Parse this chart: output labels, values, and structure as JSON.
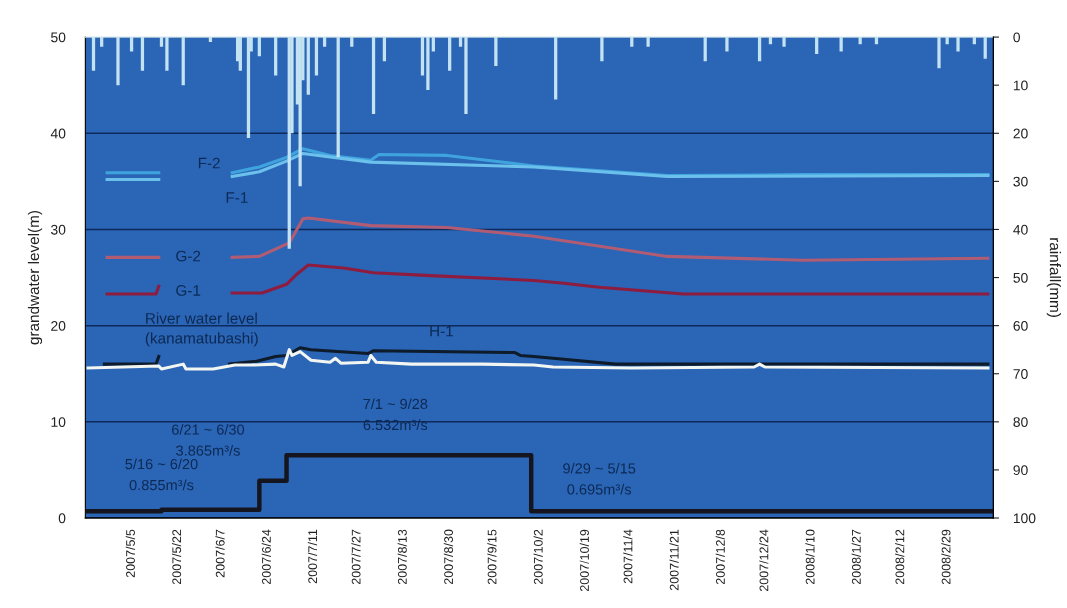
{
  "chart_data": {
    "type": "line",
    "ylabel": "grandwater level(m)",
    "y2label": "rainfall(mm)",
    "xlim": [
      "2007-04-18",
      "2008-03-17"
    ],
    "xticks": [
      {
        "value": "2007-05-05",
        "label": "2007/5/5"
      },
      {
        "value": "2007-05-22",
        "label": "2007/5/22"
      },
      {
        "value": "2007-06-07",
        "label": "2007/6/7"
      },
      {
        "value": "2007-06-24",
        "label": "2007/6/24"
      },
      {
        "value": "2007-07-11",
        "label": "2007/7/11"
      },
      {
        "value": "2007-07-27",
        "label": "2007/7/27"
      },
      {
        "value": "2007-08-13",
        "label": "2007/8/13"
      },
      {
        "value": "2007-08-30",
        "label": "2007/8/30"
      },
      {
        "value": "2007-09-15",
        "label": "2007/9/15"
      },
      {
        "value": "2007-10-02",
        "label": "2007/10/2"
      },
      {
        "value": "2007-10-19",
        "label": "2007/10/19"
      },
      {
        "value": "2007-11-04",
        "label": "2007/11/4"
      },
      {
        "value": "2007-11-21",
        "label": "2007/11/21"
      },
      {
        "value": "2007-12-08",
        "label": "2007/12/8"
      },
      {
        "value": "2007-12-24",
        "label": "2007/12/24"
      },
      {
        "value": "2008-01-10",
        "label": "2008/1/10"
      },
      {
        "value": "2008-01-27",
        "label": "2008/1/27"
      },
      {
        "value": "2008-02-12",
        "label": "2008/2/12"
      },
      {
        "value": "2008-02-29",
        "label": "2008/2/29"
      }
    ],
    "ylim": [
      0,
      50
    ],
    "yticks": [
      0,
      10,
      20,
      30,
      40,
      50
    ],
    "y2lim": [
      100,
      0
    ],
    "y2ticks": [
      0,
      10,
      20,
      30,
      40,
      50,
      60,
      70,
      80,
      90,
      100
    ],
    "grid": "y",
    "series": [
      {
        "type": "bar",
        "axis": "y2",
        "color": "#c3e2f2",
        "x": [
          "2007-04-21",
          "2007-04-24",
          "2007-04-30",
          "2007-05-05",
          "2007-05-09",
          "2007-05-16",
          "2007-05-18",
          "2007-05-24",
          "2007-06-03",
          "2007-06-13",
          "2007-06-14",
          "2007-06-17",
          "2007-06-18",
          "2007-06-21",
          "2007-06-27",
          "2007-07-02",
          "2007-07-03",
          "2007-07-05",
          "2007-07-06",
          "2007-07-07",
          "2007-07-09",
          "2007-07-12",
          "2007-07-15",
          "2007-07-20",
          "2007-07-25",
          "2007-08-02",
          "2007-08-06",
          "2007-08-20",
          "2007-08-22",
          "2007-08-24",
          "2007-08-30",
          "2007-09-03",
          "2007-09-05",
          "2007-09-16",
          "2007-10-08",
          "2007-10-25",
          "2007-11-05",
          "2007-11-11",
          "2007-12-02",
          "2007-12-10",
          "2007-12-22",
          "2007-12-26",
          "2007-12-31",
          "2008-01-12",
          "2008-01-21",
          "2008-01-28",
          "2008-02-03",
          "2008-02-26",
          "2008-02-29",
          "2008-03-04",
          "2008-03-10",
          "2008-03-14"
        ],
        "values": [
          7,
          2,
          10,
          3,
          7,
          2,
          7,
          10,
          1,
          5,
          7,
          21,
          3,
          4,
          8,
          44,
          20,
          14,
          31,
          9,
          12,
          8,
          2,
          25,
          2,
          16,
          5,
          8,
          11,
          3,
          7,
          2,
          16,
          6,
          13,
          5,
          2,
          2,
          5,
          3,
          5,
          1.5,
          2,
          3.5,
          3,
          1.5,
          1.5,
          6.5,
          1.5,
          3,
          1.5,
          4.5
        ]
      },
      {
        "name": "F-2",
        "color": "#3fa4de",
        "x": [
          "2007-04-26",
          "2007-05-15",
          "2007-05-31",
          "2007-06-11",
          "2007-06-21",
          "2007-07-01",
          "2007-07-07",
          "2007-07-17",
          "2007-08-01",
          "2007-08-04",
          "2007-08-29",
          "2007-09-30",
          "2007-11-18",
          "2008-01-07",
          "2008-03-15"
        ],
        "values": [
          35.9,
          35.9,
          null,
          35.9,
          36.5,
          37.5,
          38.4,
          37.7,
          37.2,
          37.8,
          37.7,
          36.6,
          35.6,
          35.7,
          35.7
        ]
      },
      {
        "name": "F-1",
        "color": "#6cc0ec",
        "x": [
          "2007-04-26",
          "2007-05-15",
          "2007-05-31",
          "2007-06-11",
          "2007-06-21",
          "2007-07-01",
          "2007-07-07",
          "2007-08-01",
          "2007-09-30",
          "2007-11-18",
          "2008-03-15"
        ],
        "values": [
          35.2,
          35.2,
          null,
          35.5,
          36.0,
          37.1,
          37.9,
          37.0,
          36.5,
          35.5,
          35.6
        ]
      },
      {
        "name": "G-2",
        "color": "#b25c74",
        "x": [
          "2007-04-26",
          "2007-05-15",
          "2007-05-31",
          "2007-06-11",
          "2007-06-21",
          "2007-07-02",
          "2007-07-07",
          "2007-07-09",
          "2007-08-01",
          "2007-08-29",
          "2007-09-30",
          "2007-11-18",
          "2008-01-07",
          "2008-03-15"
        ],
        "values": [
          27.1,
          27.1,
          null,
          27.1,
          27.2,
          28.6,
          31.1,
          31.2,
          30.4,
          30.2,
          29.3,
          27.2,
          26.8,
          27.0
        ]
      },
      {
        "name": "G-1",
        "color": "#8e1c3e",
        "x": [
          "2007-04-26",
          "2007-05-14",
          "2007-05-15",
          "2007-05-31",
          "2007-06-11",
          "2007-06-22",
          "2007-07-01",
          "2007-07-05",
          "2007-07-09",
          "2007-07-22",
          "2007-08-02",
          "2007-08-23",
          "2007-09-30",
          "2007-10-11",
          "2007-10-24",
          "2007-11-24",
          "2008-03-15"
        ],
        "values": [
          23.3,
          23.3,
          24.1,
          null,
          23.4,
          23.4,
          24.3,
          25.4,
          26.3,
          26.0,
          25.5,
          25.2,
          24.7,
          24.4,
          24.0,
          23.3,
          23.3
        ]
      },
      {
        "name": "H-1",
        "color": "#0d1b2a",
        "x": [
          "2007-04-25",
          "2007-05-14",
          "2007-05-15",
          "2007-05-31",
          "2007-06-10",
          "2007-06-20",
          "2007-06-27",
          "2007-07-01",
          "2007-07-06",
          "2007-07-10",
          "2007-07-31",
          "2007-08-02",
          "2007-09-23",
          "2007-09-25",
          "2007-09-30",
          "2007-10-11",
          "2007-10-30",
          "2007-12-21",
          "2008-03-15"
        ],
        "values": [
          16.0,
          16.0,
          16.8,
          null,
          16.0,
          16.3,
          16.8,
          16.9,
          17.7,
          17.5,
          17.1,
          17.4,
          17.2,
          16.9,
          16.8,
          16.5,
          16.0,
          16.0,
          16.0
        ]
      },
      {
        "name": "River water level\n(kanamatubashi)",
        "color": "#f2f6f2",
        "x": [
          "2007-04-19",
          "2007-05-15",
          "2007-05-16",
          "2007-05-24",
          "2007-05-25",
          "2007-06-04",
          "2007-06-12",
          "2007-06-18",
          "2007-06-27",
          "2007-06-30",
          "2007-07-02",
          "2007-07-03",
          "2007-07-06",
          "2007-07-10",
          "2007-07-17",
          "2007-07-19",
          "2007-07-21",
          "2007-07-31",
          "2007-08-01",
          "2007-08-03",
          "2007-08-16",
          "2007-09-11",
          "2007-09-30",
          "2007-10-07",
          "2007-11-05",
          "2007-12-20",
          "2007-12-22",
          "2007-12-24",
          "2008-03-15"
        ],
        "values": [
          15.6,
          15.8,
          15.5,
          16.0,
          15.5,
          15.5,
          15.9,
          15.9,
          16.0,
          15.7,
          17.5,
          16.9,
          17.3,
          16.4,
          16.2,
          16.6,
          16.1,
          16.2,
          16.9,
          16.2,
          16.0,
          16.0,
          15.9,
          15.7,
          15.6,
          15.7,
          16.0,
          15.7,
          15.6
        ]
      },
      {
        "type": "step",
        "color": "#15151f",
        "x": [
          "2007-04-18",
          "2007-05-16",
          "2007-06-21",
          "2007-07-01",
          "2007-09-29",
          "2008-03-17"
        ],
        "values": [
          0.695,
          0.855,
          3.865,
          6.532,
          0.695,
          0.695
        ]
      }
    ],
    "annotations": [
      {
        "text": "5/16 ~ 6/20\n0.855m³/s",
        "x": "2007-05-16",
        "y": 0.855
      },
      {
        "text": "6/21 ~ 6/30\n3.865m³/s",
        "x": "2007-06-21",
        "y": 3.865
      },
      {
        "text": "7/1 ~ 9/28\n6.532m³/s",
        "x": "2007-08-10",
        "y": 6.532
      },
      {
        "text": "9/29 ~ 5/15\n0.695m³/s",
        "x": "2007-10-24",
        "y": 0.695
      }
    ]
  }
}
